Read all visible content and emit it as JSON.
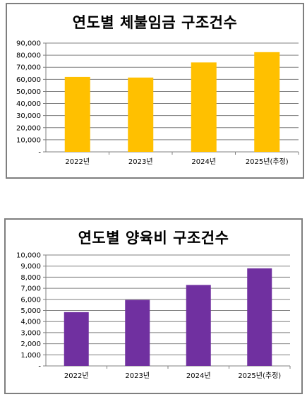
{
  "chart_data": [
    {
      "type": "bar",
      "title": "연도별 체불임금 구조건수",
      "categories": [
        "2022년",
        "2023년",
        "2024년",
        "2025년(추정)"
      ],
      "values": [
        62000,
        61500,
        74000,
        82500
      ],
      "yticks": [
        "-",
        "10,000",
        "20,000",
        "30,000",
        "40,000",
        "50,000",
        "60,000",
        "70,000",
        "80,000",
        "90,000"
      ],
      "ylim": [
        0,
        90000
      ],
      "grid": true,
      "color": "#FFC000"
    },
    {
      "type": "bar",
      "title": "연도별 양육비 구조건수",
      "categories": [
        "2022년",
        "2023년",
        "2024년",
        "2025년(추정)"
      ],
      "values": [
        4850,
        5950,
        7300,
        8800
      ],
      "yticks": [
        "-",
        "1,000",
        "2,000",
        "3,000",
        "4,000",
        "5,000",
        "6,000",
        "7,000",
        "8,000",
        "9,000",
        "10,000"
      ],
      "ylim": [
        0,
        10000
      ],
      "grid": true,
      "color": "#7030A0"
    }
  ]
}
